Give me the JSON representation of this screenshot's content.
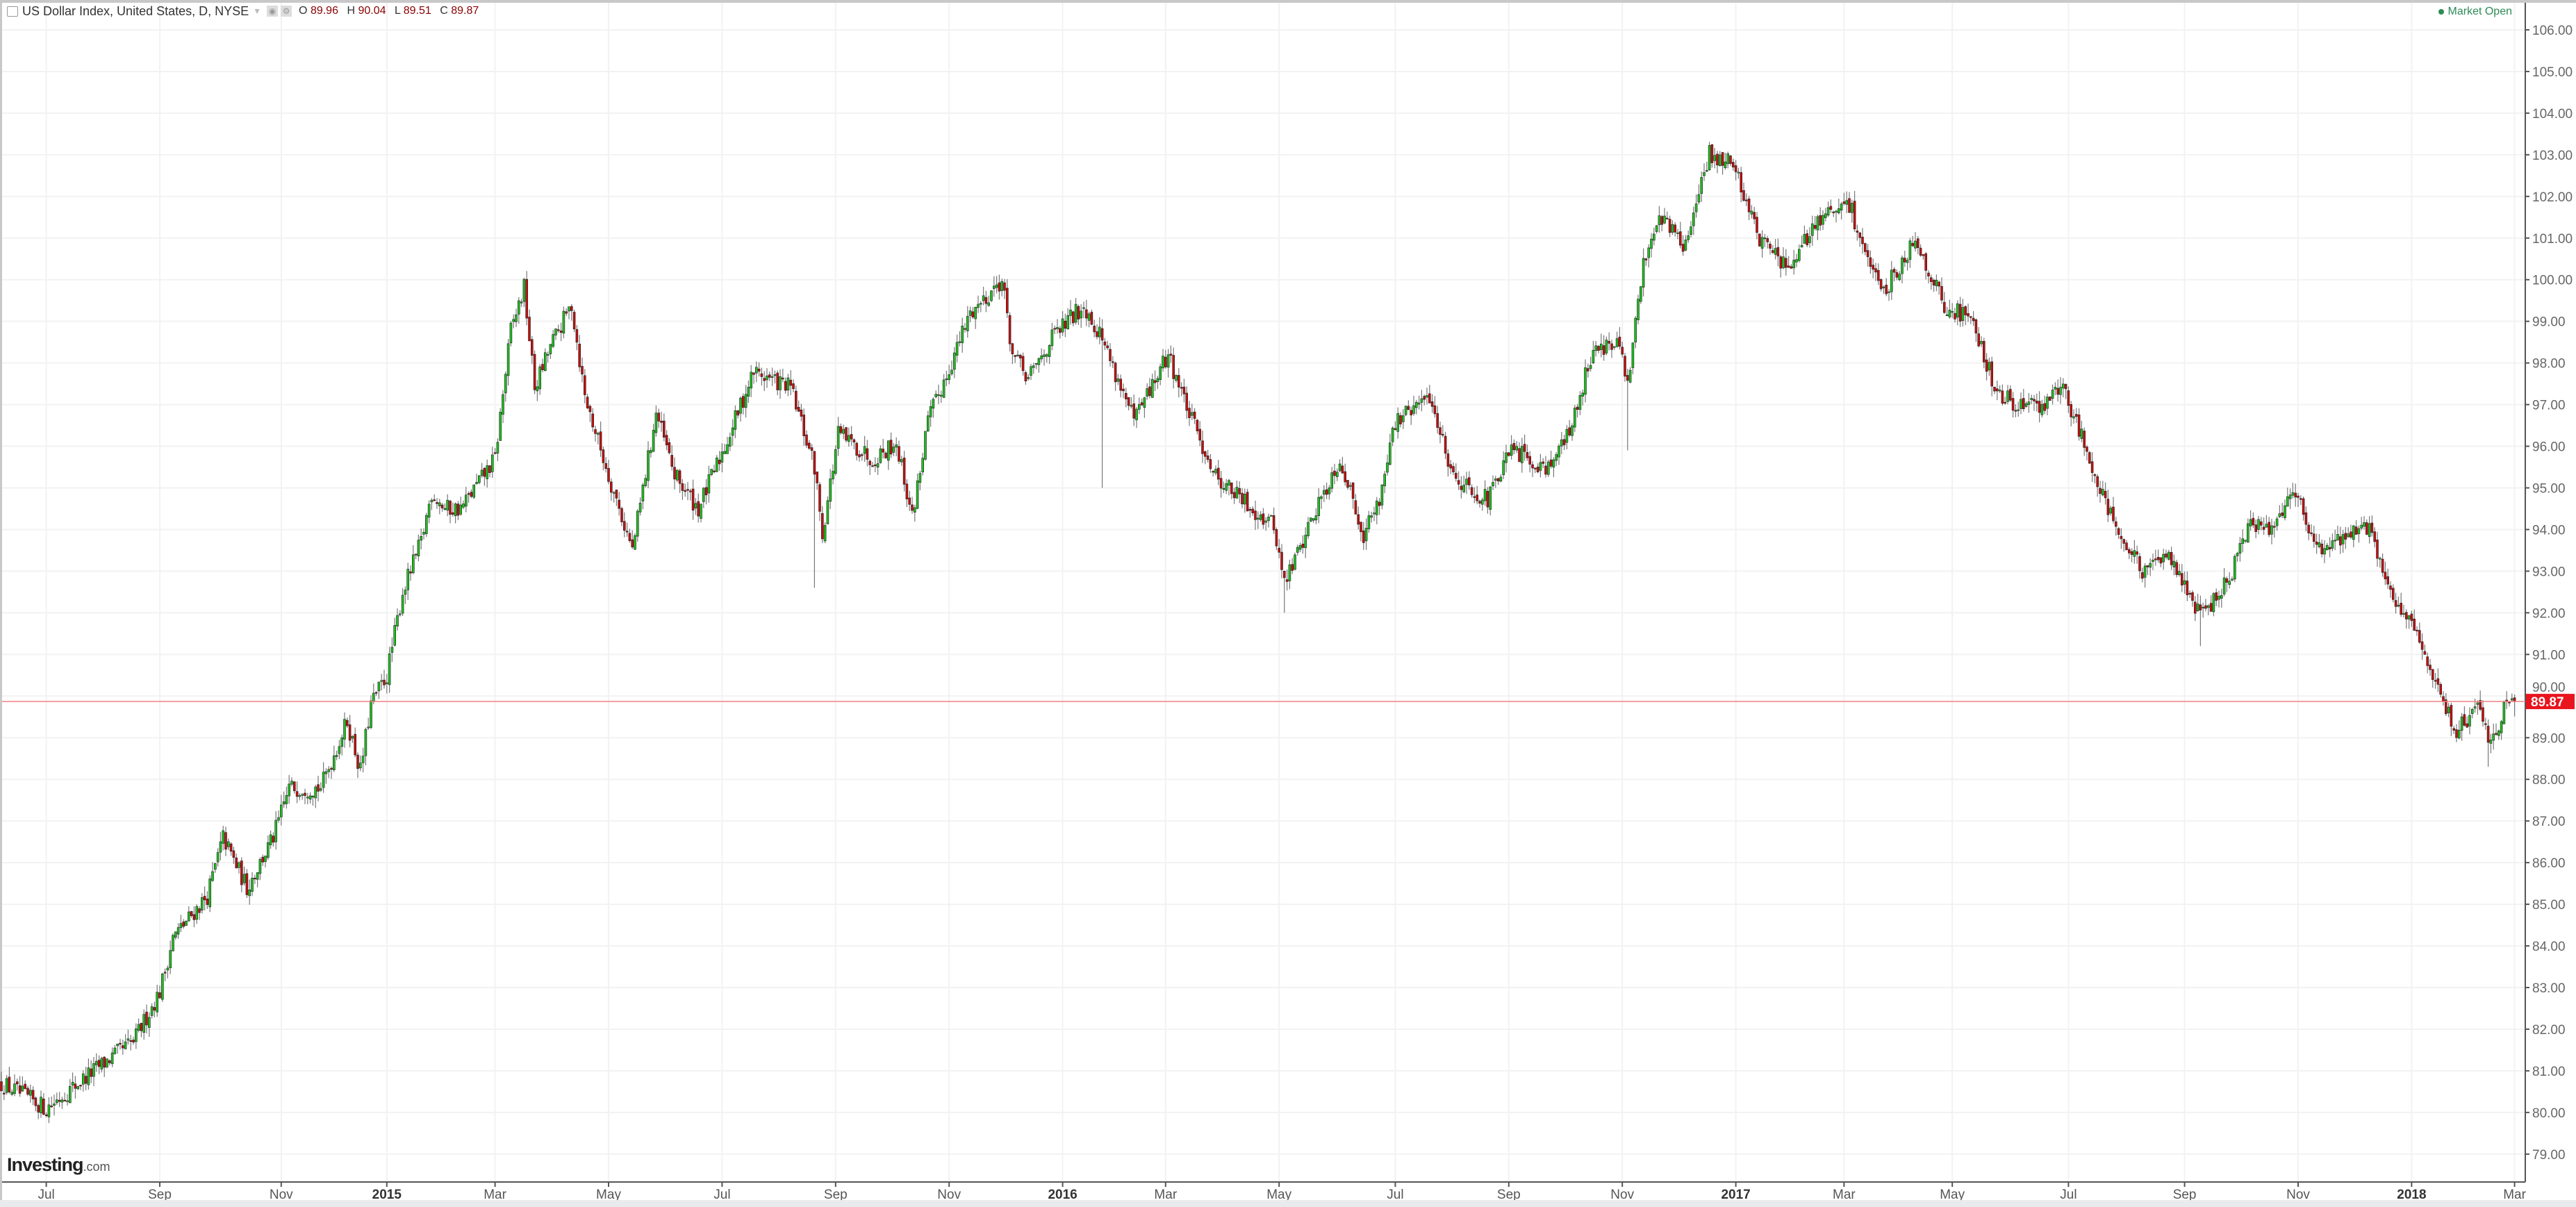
{
  "header": {
    "title": "US Dollar Index, United States, D, NYSE",
    "ohlc": {
      "o_label": "O",
      "o": "89.96",
      "h_label": "H",
      "h": "90.04",
      "l_label": "L",
      "l": "89.51",
      "c_label": "C",
      "c": "89.87"
    },
    "market_status": "Market Open"
  },
  "watermark": {
    "brand": "Investing",
    "suffix": ".com"
  },
  "colors": {
    "up": "#1fbf1f",
    "down": "#c41010",
    "wick": "#777777",
    "price_line": "#f08080",
    "price_label": "#e8141e",
    "market_open": "#2e8b57"
  },
  "chart_data": {
    "type": "candlestick",
    "title": "US Dollar Index, United States, D, NYSE",
    "ylim": [
      78.33,
      106.35
    ],
    "y_ticks": [
      79,
      80,
      81,
      82,
      83,
      84,
      85,
      86,
      87,
      88,
      89,
      90,
      91,
      92,
      93,
      94,
      95,
      96,
      97,
      98,
      99,
      100,
      101,
      102,
      103,
      104,
      105,
      106
    ],
    "x_ticks": [
      {
        "label": "Jul",
        "bar": 17,
        "bold": false
      },
      {
        "label": "Sep",
        "bar": 60,
        "bold": false
      },
      {
        "label": "Nov",
        "bar": 106,
        "bold": false
      },
      {
        "label": "2015",
        "bar": 146,
        "bold": true
      },
      {
        "label": "Mar",
        "bar": 187,
        "bold": false
      },
      {
        "label": "May",
        "bar": 230,
        "bold": false
      },
      {
        "label": "Jul",
        "bar": 273,
        "bold": false
      },
      {
        "label": "Sep",
        "bar": 316,
        "bold": false
      },
      {
        "label": "Nov",
        "bar": 359,
        "bold": false
      },
      {
        "label": "2016",
        "bar": 402,
        "bold": true
      },
      {
        "label": "Mar",
        "bar": 441,
        "bold": false
      },
      {
        "label": "May",
        "bar": 484,
        "bold": false
      },
      {
        "label": "Jul",
        "bar": 528,
        "bold": false
      },
      {
        "label": "Sep",
        "bar": 571,
        "bold": false
      },
      {
        "label": "Nov",
        "bar": 614,
        "bold": false
      },
      {
        "label": "2017",
        "bar": 657,
        "bold": true
      },
      {
        "label": "Mar",
        "bar": 698,
        "bold": false
      },
      {
        "label": "May",
        "bar": 739,
        "bold": false
      },
      {
        "label": "Jul",
        "bar": 783,
        "bold": false
      },
      {
        "label": "Sep",
        "bar": 827,
        "bold": false
      },
      {
        "label": "Nov",
        "bar": 870,
        "bold": false
      },
      {
        "label": "2018",
        "bar": 913,
        "bold": true
      },
      {
        "label": "Mar",
        "bar": 952,
        "bold": false
      }
    ],
    "last_price": 89.87,
    "last_price_label": "89.87",
    "close_path": [
      [
        0,
        80.7
      ],
      [
        17,
        80.1
      ],
      [
        37,
        81.1
      ],
      [
        50,
        81.7
      ],
      [
        60,
        82.9
      ],
      [
        65,
        84.2
      ],
      [
        78,
        85.2
      ],
      [
        84,
        86.6
      ],
      [
        93,
        85.4
      ],
      [
        103,
        86.6
      ],
      [
        109,
        87.8
      ],
      [
        121,
        87.8
      ],
      [
        131,
        89.4
      ],
      [
        136,
        88.2
      ],
      [
        140,
        89.8
      ],
      [
        146,
        90.5
      ],
      [
        152,
        92.5
      ],
      [
        159,
        93.7
      ],
      [
        163,
        94.9
      ],
      [
        168,
        94.5
      ],
      [
        174,
        94.5
      ],
      [
        187,
        95.7
      ],
      [
        193,
        98.8
      ],
      [
        198,
        99.8
      ],
      [
        202,
        97.4
      ],
      [
        208,
        98.4
      ],
      [
        216,
        99.4
      ],
      [
        221,
        97.2
      ],
      [
        230,
        95.3
      ],
      [
        239,
        93.5
      ],
      [
        248,
        96.8
      ],
      [
        255,
        95.3
      ],
      [
        264,
        94.5
      ],
      [
        274,
        96.0
      ],
      [
        285,
        97.8
      ],
      [
        299,
        97.4
      ],
      [
        308,
        95.5
      ],
      [
        311,
        93.9
      ],
      [
        317,
        96.3
      ],
      [
        330,
        95.7
      ],
      [
        339,
        96.1
      ],
      [
        345,
        94.3
      ],
      [
        351,
        96.6
      ],
      [
        361,
        98.2
      ],
      [
        367,
        99.2
      ],
      [
        379,
        100.0
      ],
      [
        383,
        98.2
      ],
      [
        389,
        97.6
      ],
      [
        398,
        98.6
      ],
      [
        410,
        99.4
      ],
      [
        417,
        98.6
      ],
      [
        429,
        96.6
      ],
      [
        442,
        98.2
      ],
      [
        451,
        96.6
      ],
      [
        460,
        95.3
      ],
      [
        470,
        94.7
      ],
      [
        482,
        94.1
      ],
      [
        486,
        92.7
      ],
      [
        498,
        94.5
      ],
      [
        507,
        95.7
      ],
      [
        516,
        93.9
      ],
      [
        522,
        94.7
      ],
      [
        527,
        96.5
      ],
      [
        541,
        97.2
      ],
      [
        550,
        95.3
      ],
      [
        563,
        94.7
      ],
      [
        572,
        95.9
      ],
      [
        585,
        95.5
      ],
      [
        594,
        96.3
      ],
      [
        603,
        98.4
      ],
      [
        613,
        98.4
      ],
      [
        616,
        97.4
      ],
      [
        622,
        100.4
      ],
      [
        628,
        101.6
      ],
      [
        638,
        100.8
      ],
      [
        647,
        103.0
      ],
      [
        656,
        102.8
      ],
      [
        666,
        101.0
      ],
      [
        678,
        100.2
      ],
      [
        687,
        101.4
      ],
      [
        700,
        101.8
      ],
      [
        712,
        99.6
      ],
      [
        725,
        101.0
      ],
      [
        737,
        99.2
      ],
      [
        746,
        99.2
      ],
      [
        756,
        97.2
      ],
      [
        771,
        96.9
      ],
      [
        781,
        97.4
      ],
      [
        790,
        95.9
      ],
      [
        802,
        93.9
      ],
      [
        812,
        92.9
      ],
      [
        821,
        93.5
      ],
      [
        833,
        91.9
      ],
      [
        843,
        92.7
      ],
      [
        852,
        94.1
      ],
      [
        861,
        94.1
      ],
      [
        868,
        95.1
      ],
      [
        877,
        93.5
      ],
      [
        883,
        93.7
      ],
      [
        896,
        94.1
      ],
      [
        905,
        92.5
      ],
      [
        911,
        91.9
      ],
      [
        917,
        91.1
      ],
      [
        921,
        90.4
      ],
      [
        930,
        89.2
      ],
      [
        939,
        89.8
      ],
      [
        942,
        88.8
      ],
      [
        949,
        89.8
      ],
      [
        952,
        89.87
      ]
    ],
    "spike_lows": [
      [
        308,
        92.6
      ],
      [
        417,
        95.0
      ],
      [
        486,
        92.0
      ],
      [
        616,
        95.9
      ],
      [
        833,
        91.2
      ],
      [
        942,
        88.3
      ]
    ]
  }
}
